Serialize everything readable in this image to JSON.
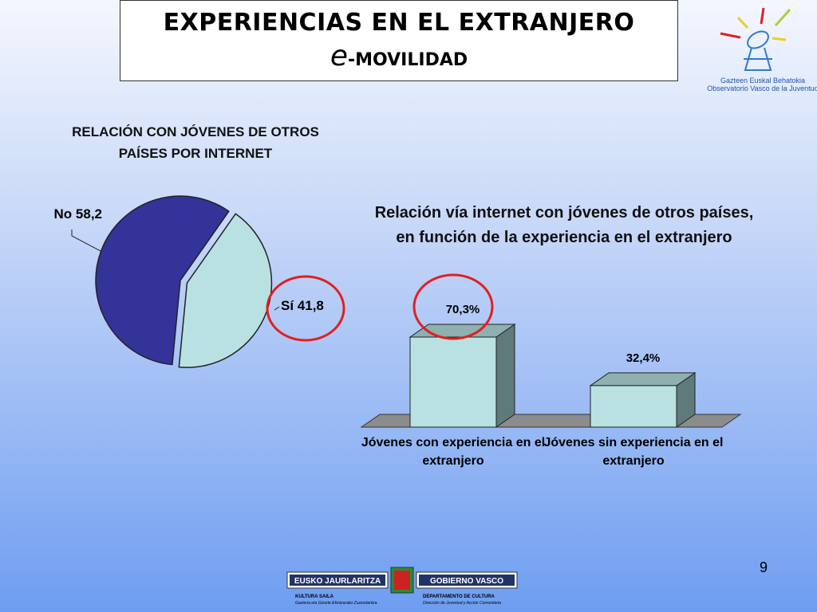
{
  "header": {
    "title": "EXPERIENCIAS EN EL EXTRANJERO",
    "subtitle_initial": "e",
    "subtitle": "-MOVILIDAD"
  },
  "logo": {
    "line1": "Gazteen Euskal Behatokia",
    "line2": "Observatorio Vasco de la Juventud"
  },
  "chart_data": [
    {
      "type": "pie",
      "title": "RELACIÓN CON JÓVENES DE OTROS PAÍSES POR INTERNET",
      "categories": [
        "Sí",
        "No"
      ],
      "values": [
        41.8,
        58.2
      ],
      "value_labels": [
        "41,8",
        "58,2"
      ],
      "colors": [
        "#b9e1e1",
        "#333399"
      ],
      "exploded": [
        true,
        false
      ]
    },
    {
      "type": "bar",
      "title": "Relación vía internet con jóvenes de otros países, en función de la experiencia en el extranjero",
      "categories": [
        "Jóvenes con experiencia en el extranjero",
        "Jóvenes sin experiencia en el extranjero"
      ],
      "values": [
        70.3,
        32.4
      ],
      "value_labels": [
        "70,3%",
        "32,4%"
      ],
      "color": "#b9e1e1",
      "ylim": [
        0,
        80
      ]
    }
  ],
  "page_number": "9",
  "footer": {
    "left_banner": "EUSKO JAURLARITZA",
    "right_banner": "GOBIERNO VASCO",
    "left_dept": "KULTURA SAILA",
    "left_sub": "Gazteria eta Gizarte Ekintzarako Zuzendaritza",
    "right_dept": "DEPARTAMENTO DE CULTURA",
    "right_sub": "Dirección de Juventud y Acción Comunitaria"
  }
}
